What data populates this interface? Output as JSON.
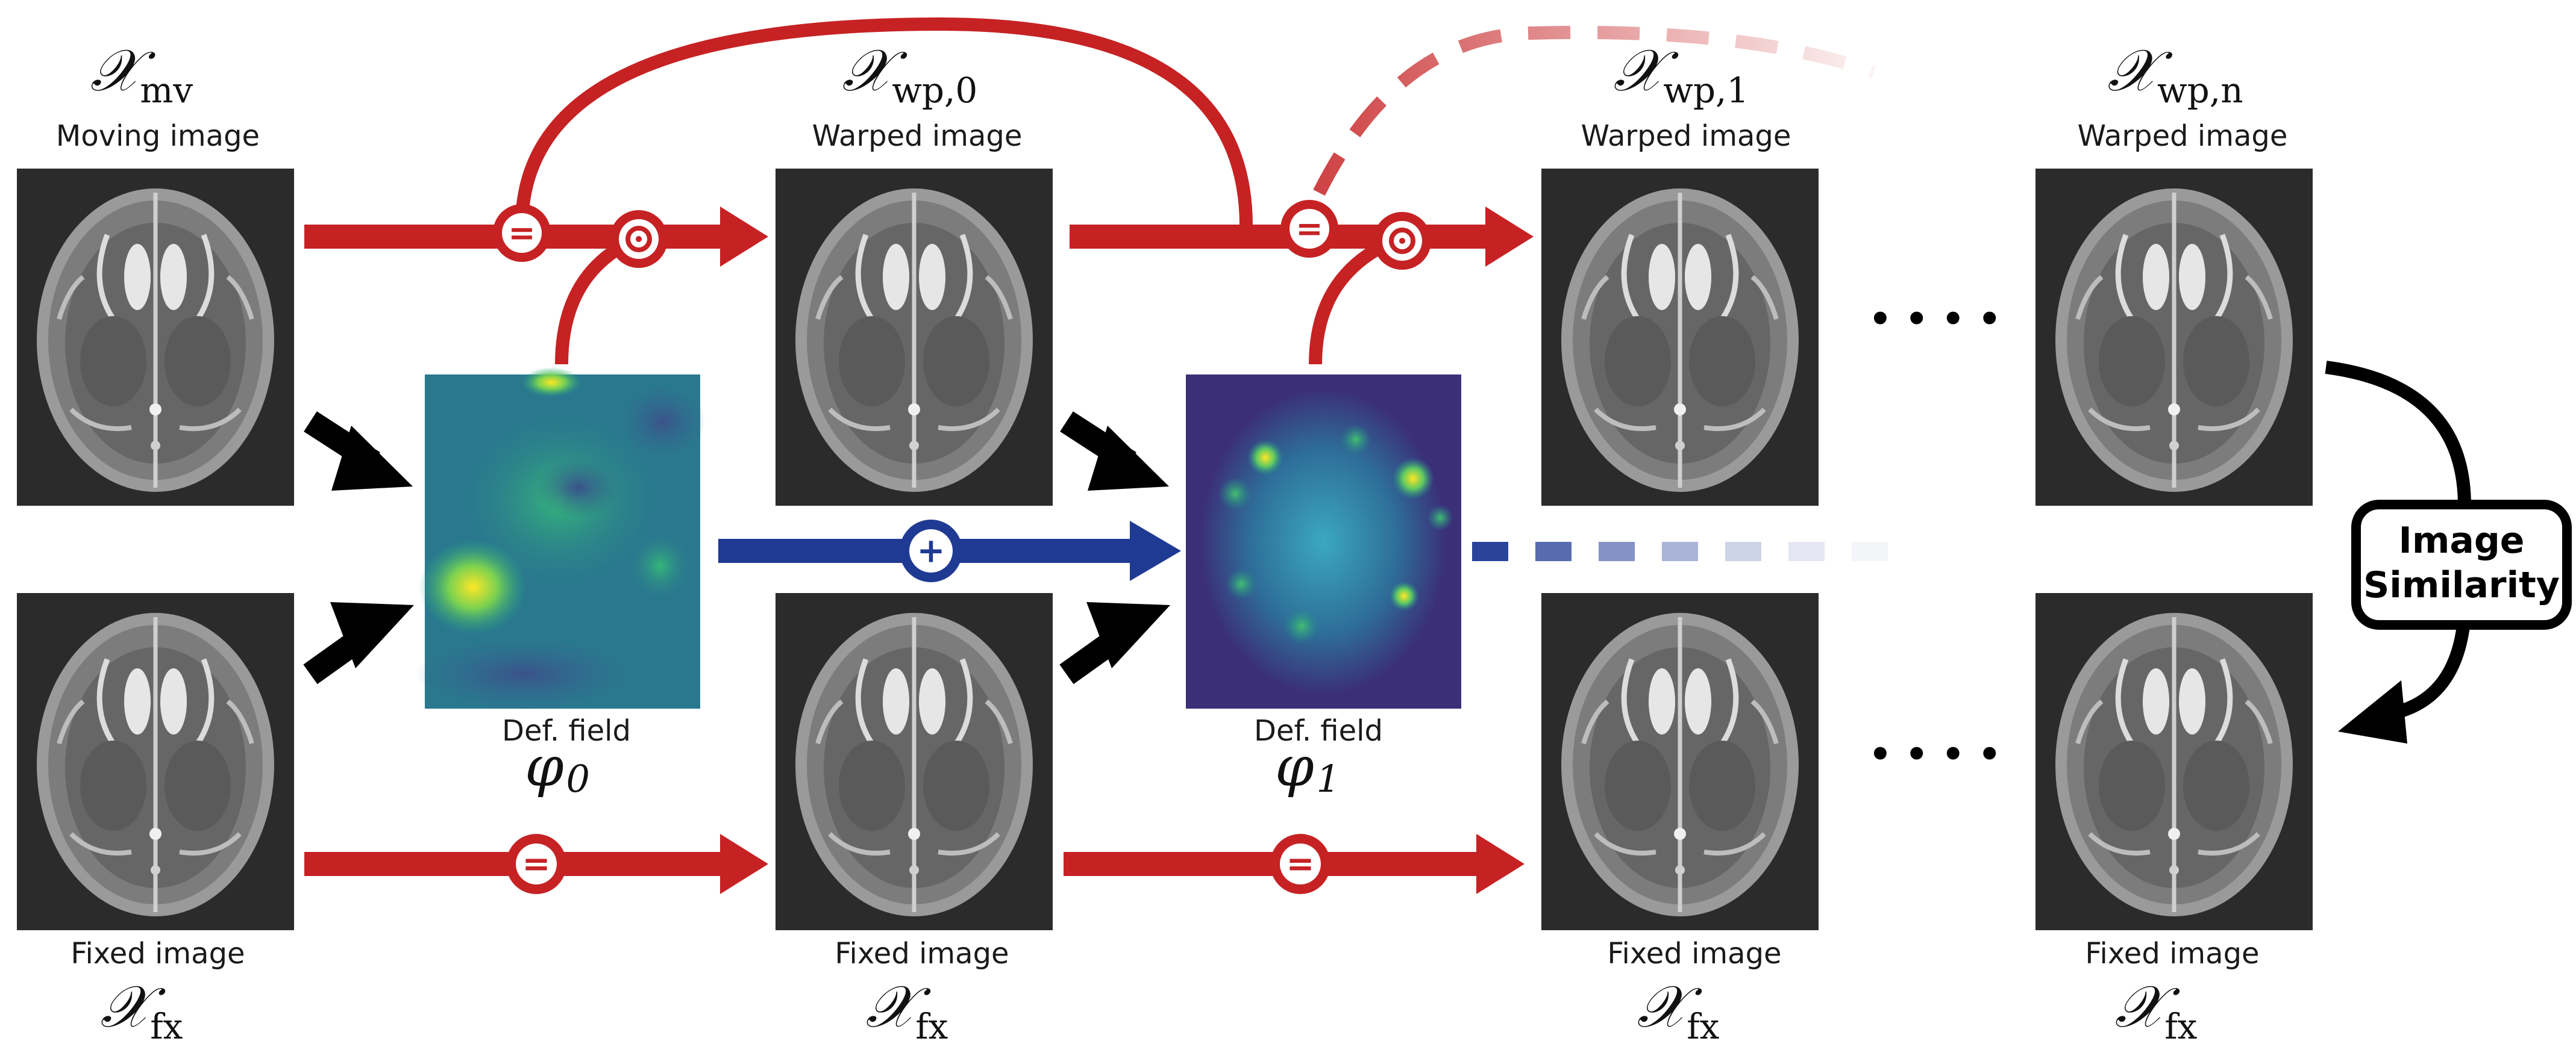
{
  "colors": {
    "identity_arrow": "#c62224",
    "compose_arrow": "#1f3a93",
    "input_arrow": "#000000",
    "image_bg": "#2b2b2b"
  },
  "labels": {
    "moving_image": "Moving image",
    "warped_image": "Warped image",
    "fixed_image": "Fixed image",
    "def_field": "Def. field",
    "image_similarity_line1": "Image",
    "image_similarity_line2": "Similarity",
    "ellipsis": "••••"
  },
  "symbols": {
    "x": "𝒳",
    "mv_sub": "mv",
    "wp0_sub": "wp,0",
    "wp1_sub": "wp,1",
    "wpn_sub": "wp,n",
    "fx_sub": "fx",
    "phi": "φ",
    "phi0_sub": "0",
    "phi1_sub": "1"
  },
  "operators": {
    "identity": "=",
    "compose": "⊙",
    "add": "+"
  },
  "icons": {
    "brain": "brain-mri-icon",
    "def_field": "deformation-field-heatmap-icon"
  }
}
